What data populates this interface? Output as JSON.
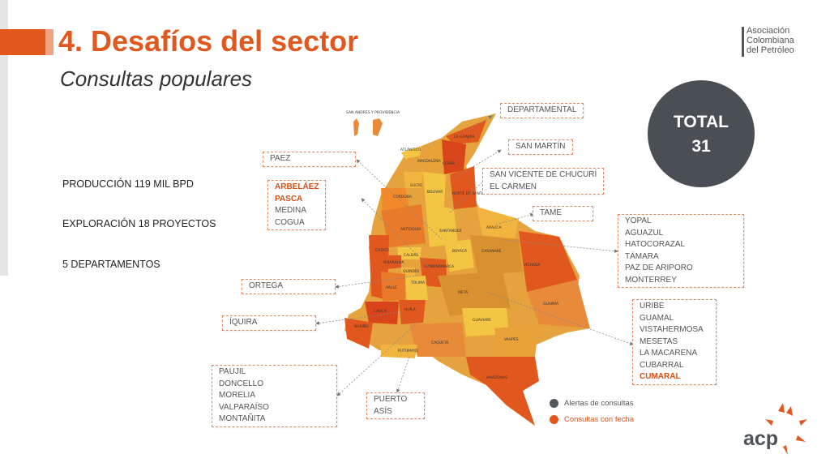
{
  "header": {
    "title": "4. Desafíos del sector",
    "subtitle": "Consultas populares"
  },
  "logo": {
    "line1": "Asociación",
    "line2": "Colombiana",
    "line3": "del Petróleo",
    "brand": "acp"
  },
  "stats": {
    "production": "PRODUCCIÓN 119 MIL BPD",
    "exploration": "EXPLORACIÓN 18 PROYECTOS",
    "departments": "5 DEPARTAMENTOS"
  },
  "total": {
    "label": "TOTAL",
    "value": "31"
  },
  "map": {
    "regions": {
      "san_andres": "SAN ANDRÉS Y PROVIDENCIA",
      "guajira": "LA GUAJIRA",
      "atlantico": "ATLÁNTICO",
      "magdalena": "MAGDALENA",
      "cesar": "CESAR",
      "sucre": "SUCRE",
      "bolivar": "BOLÍVAR",
      "cordoba": "CÓRDOBA",
      "norte_santander": "NORTE DE SANTANDER",
      "antioquia": "ANTIOQUIA",
      "santander": "SANTANDER",
      "arauca": "ARAUCA",
      "choco": "CHOCÓ",
      "boyaca": "BOYACÁ",
      "casanare": "CASANARE",
      "caldas": "CALDAS",
      "risaralda": "RISARALDA",
      "cundinamarca": "CUNDINAMARCA",
      "vichada": "VICHADA",
      "quindio": "QUINDÍO",
      "tolima": "TOLIMA",
      "valle": "VALLE",
      "meta": "META",
      "guainia": "GUAINÍA",
      "cauca": "CAUCA",
      "huila": "HUILA",
      "guaviare": "GUAVIARE",
      "narino": "NARIÑO",
      "caqueta": "CAQUETÁ",
      "vaupes": "VAUPÉS",
      "putumayo": "PUTUMAYO",
      "amazonas": "AMAZONAS"
    }
  },
  "callouts": {
    "departamental": [
      "DEPARTAMENTAL"
    ],
    "san_martin": [
      "SAN MARTÍN"
    ],
    "paez": [
      "PAEZ"
    ],
    "san_vicente": [
      "SAN VICENTE DE CHUCURÍ",
      "EL CARMEN"
    ],
    "arbelaez": [
      "ARBELÁEZ",
      "PASCA",
      "MEDINA",
      "COGUA"
    ],
    "tame": [
      "TAME"
    ],
    "yopal": [
      "YOPAL",
      "AGUAZUL",
      "HATOCORAZAL",
      "TÁMARA",
      "PAZ DE ARIPORO",
      "MONTERREY"
    ],
    "ortega": [
      "ORTEGA"
    ],
    "iquira": [
      "ÍQUIRA"
    ],
    "uribe": [
      "URIBE",
      "GUAMAL",
      "VISTAHERMOSA",
      "MESETAS",
      "LA MACARENA",
      "CUBARRAL",
      "CUMARAL"
    ],
    "paujil": [
      "PAUJIL",
      "DONCELLO",
      "MORELIA",
      "VALPARAÍSO",
      "MONTAÑITA"
    ],
    "puerto_asis": [
      "PUERTO",
      "ASÍS"
    ]
  },
  "legend": {
    "alerts": "Alertas de consultas",
    "dated": "Consultas con fecha",
    "alerts_color": "#555a60",
    "dated_color": "#e0581e"
  },
  "colors": {
    "accent": "#e0581e",
    "dark": "#4a4f55"
  }
}
